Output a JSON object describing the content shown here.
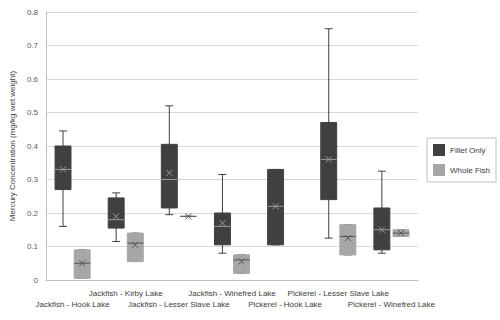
{
  "chart_data": {
    "type": "boxplot",
    "y_label": "Mercury Concentration (mg/kg wet weight)",
    "categories": [
      "Jackfish - Hook Lake",
      "Jackfish - Kirby Lake",
      "Jackfish - Lesser Slave Lake",
      "Jackfish - Winefred Lake",
      "Pickerel - Hook Lake",
      "Pickerel - Lesser Slave Lake",
      "Pickerel - Winefred Lake"
    ],
    "series": [
      {
        "name": "Fillet Only",
        "color": "#404040",
        "values": [
          [
            0.16,
            0.27,
            0.33,
            0.4,
            0.445
          ],
          [
            0.115,
            0.155,
            0.18,
            0.245,
            0.26
          ],
          [
            0.195,
            0.215,
            0.3,
            0.405,
            0.52
          ],
          [
            0.08,
            0.105,
            0.16,
            0.2,
            0.315
          ],
          [
            0.105,
            0.105,
            0.22,
            0.33,
            0.33
          ],
          [
            0.125,
            0.24,
            0.36,
            0.47,
            0.75
          ],
          [
            0.08,
            0.09,
            0.15,
            0.215,
            0.325
          ]
        ],
        "means": [
          0.33,
          0.19,
          0.32,
          0.17,
          0.22,
          0.36,
          0.15
        ]
      },
      {
        "name": "Whole Fish",
        "color": "#a6a6a6",
        "values": [
          [
            0.005,
            0.005,
            0.05,
            0.09,
            0.09
          ],
          [
            0.055,
            0.055,
            0.11,
            0.14,
            0.14
          ],
          [
            0.19,
            0.19,
            0.19,
            0.19,
            0.19
          ],
          [
            0.02,
            0.02,
            0.06,
            0.075,
            0.075
          ],
          null,
          [
            0.075,
            0.075,
            0.13,
            0.165,
            0.165
          ],
          [
            0.13,
            0.13,
            0.14,
            0.15,
            0.15
          ]
        ],
        "means": [
          0.05,
          0.105,
          0.19,
          0.055,
          null,
          0.125,
          0.14
        ]
      }
    ],
    "ylim": [
      0,
      0.8
    ],
    "yticks": [
      0,
      0.1,
      0.2,
      0.3,
      0.4,
      0.5,
      0.6,
      0.7,
      0.8
    ],
    "grid": true,
    "legend": "right"
  }
}
